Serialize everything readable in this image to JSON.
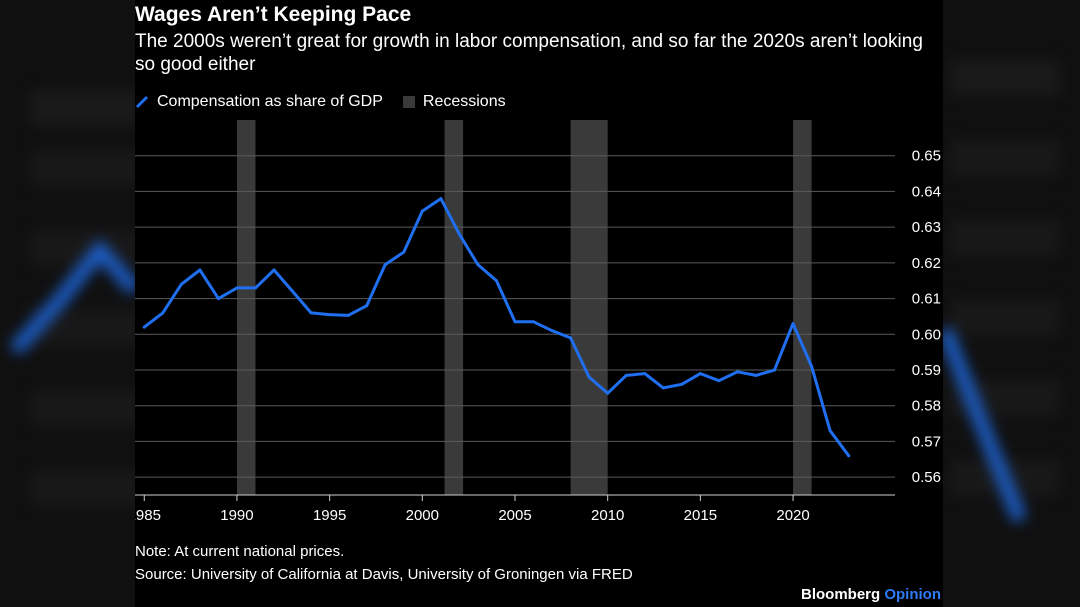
{
  "title": "Wages Aren’t Keeping Pace",
  "subtitle": "The 2000s weren’t great for growth in labor compensation, and so far the 2020s aren’t looking so good either",
  "legend": {
    "series_label": "Compensation as share of GDP",
    "recession_label": "Recessions"
  },
  "note": "Note: At current national prices.",
  "source": "Source: University of California at Davis, University of Groningen via FRED",
  "brand": {
    "name": "Bloomberg",
    "product": "Opinion"
  },
  "colors": {
    "series": "#1f6ff0",
    "recession": "#3a3a3a",
    "grid": "#5a5a5a",
    "brand_accent": "#2e7bf6"
  },
  "chart_data": {
    "type": "line",
    "title": "Wages Aren’t Keeping Pace",
    "xlabel": "",
    "ylabel": "",
    "xlim": [
      1984.5,
      2025.5
    ],
    "ylim": [
      0.555,
      0.66
    ],
    "x_ticks": [
      1985,
      1990,
      1995,
      2000,
      2005,
      2010,
      2015,
      2020
    ],
    "x_tick_labels": [
      "1985",
      "1990",
      "1995",
      "2000",
      "2005",
      "2010",
      "2015",
      "2020"
    ],
    "y_ticks": [
      0.56,
      0.57,
      0.58,
      0.59,
      0.6,
      0.61,
      0.62,
      0.63,
      0.64,
      0.65
    ],
    "y_tick_labels": [
      "0.56",
      "0.57",
      "0.58",
      "0.59",
      "0.60",
      "0.61",
      "0.62",
      "0.63",
      "0.64",
      "0.65"
    ],
    "legend_position": "top-left",
    "recessions": [
      {
        "start": 1990.0,
        "end": 1991.0
      },
      {
        "start": 2001.2,
        "end": 2002.2
      },
      {
        "start": 2008.0,
        "end": 2010.0
      },
      {
        "start": 2020.0,
        "end": 2021.0
      }
    ],
    "series": [
      {
        "name": "Compensation as share of GDP",
        "x": [
          1985,
          1986,
          1987,
          1988,
          1989,
          1990,
          1991,
          1992,
          1993,
          1994,
          1995,
          1996,
          1997,
          1998,
          1999,
          2000,
          2001,
          2002,
          2003,
          2004,
          2005,
          2006,
          2007,
          2008,
          2009,
          2010,
          2011,
          2012,
          2013,
          2014,
          2015,
          2016,
          2017,
          2018,
          2019,
          2020,
          2021,
          2022,
          2023
        ],
        "values": [
          0.602,
          0.606,
          0.614,
          0.618,
          0.61,
          0.613,
          0.613,
          0.618,
          0.612,
          0.606,
          0.6055,
          0.6053,
          0.608,
          0.6195,
          0.623,
          0.6345,
          0.638,
          0.628,
          0.6195,
          0.615,
          0.6035,
          0.6035,
          0.601,
          0.599,
          0.588,
          0.5835,
          0.5885,
          0.589,
          0.585,
          0.586,
          0.589,
          0.587,
          0.5895,
          0.5885,
          0.59,
          0.603,
          0.591,
          0.573,
          0.566
        ]
      }
    ]
  }
}
